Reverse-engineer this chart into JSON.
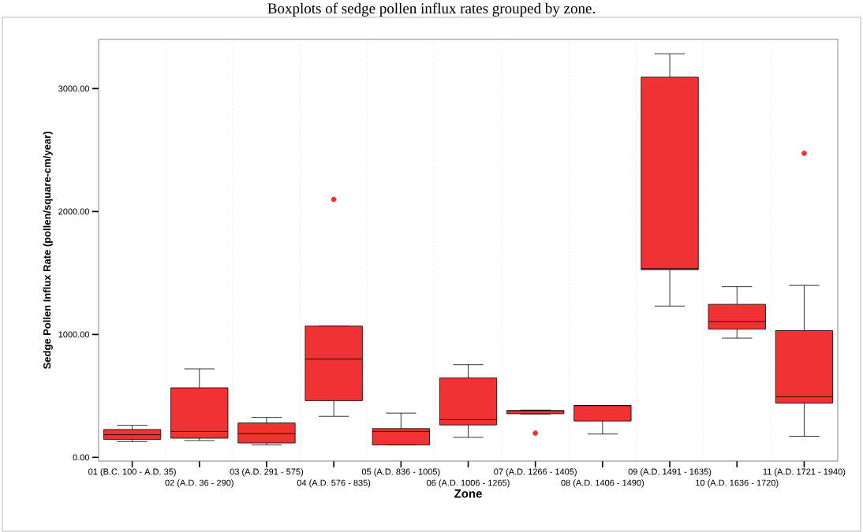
{
  "chart_data": {
    "type": "box",
    "title": "Boxplots of sedge pollen influx rates grouped by zone.",
    "xlabel": "Zone",
    "ylabel": "Sedge Pollen Influx Rate (pollen/square-cm/year)",
    "categories": [
      "01 (B.C. 100 - A.D. 35)",
      "02 (A.D. 36 - 290)",
      "03 (A.D. 291 - 575)",
      "04 (A.D. 576 - 835)",
      "05 (A.D. 836 - 1005)",
      "06 (A.D. 1006 - 1265)",
      "07 (A.D. 1266 - 1405)",
      "08 (A.D. 1406 - 1490)",
      "09 (A.D. 1491 - 1635)",
      "10 (A.D. 1636 - 1720)",
      "11 (A.D. 1721 - 1940)"
    ],
    "color": "#f03232",
    "boxes": [
      {
        "low": 128,
        "q1": 147,
        "median": 184,
        "q3": 227,
        "high": 261
      },
      {
        "low": 137,
        "q1": 156,
        "median": 211,
        "q3": 566,
        "high": 720
      },
      {
        "low": 101,
        "q1": 117,
        "median": 193,
        "q3": 280,
        "high": 325
      },
      {
        "low": 334,
        "q1": 461,
        "median": 800,
        "q3": 1068,
        "high": 1068,
        "outliers": [
          2098
        ]
      },
      {
        "low": 101,
        "q1": 101,
        "median": 211,
        "q3": 234,
        "high": 360
      },
      {
        "low": 163,
        "q1": 264,
        "median": 307,
        "q3": 646,
        "high": 754
      },
      {
        "low": 353,
        "q1": 355,
        "median": 380,
        "q3": 381,
        "high": 385,
        "outliers": [
          197
        ]
      },
      {
        "low": 190,
        "q1": 296,
        "median": 420,
        "q3": 422,
        "high": 422
      },
      {
        "low": 1231,
        "q1": 1527,
        "median": 1536,
        "q3": 3093,
        "high": 3283
      },
      {
        "low": 970,
        "q1": 1043,
        "median": 1105,
        "q3": 1245,
        "high": 1389
      },
      {
        "low": 172,
        "q1": 442,
        "median": 493,
        "q3": 1031,
        "high": 1399,
        "outliers": [
          2474
        ]
      }
    ],
    "ylim": [
      -30,
      3400
    ],
    "yticks": [
      {
        "value": 0,
        "label": "0.00"
      },
      {
        "value": 1000,
        "label": "1000.00"
      },
      {
        "value": 2000,
        "label": "2000.00"
      },
      {
        "value": 3000,
        "label": "3000.00"
      }
    ],
    "grid": "x"
  }
}
